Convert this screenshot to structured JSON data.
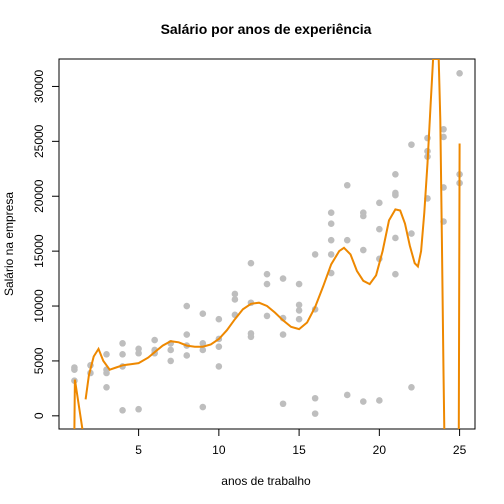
{
  "chart_data": {
    "type": "scatter",
    "title": "Salário por anos de experiência",
    "xlabel": "anos de trabalho",
    "ylabel": "Salário na empresa",
    "xlim": [
      0.04,
      25.96
    ],
    "ylim": [
      -1200,
      32500
    ],
    "x_ticks": [
      5,
      10,
      15,
      20,
      25
    ],
    "y_ticks": [
      0,
      5000,
      10000,
      15000,
      20000,
      25000,
      30000
    ],
    "grid": false,
    "legend": "none",
    "colors": {
      "points": "#bebebe",
      "curve": "#ee8800",
      "axes": "#000000"
    },
    "points": [
      {
        "x": 1,
        "y": 4200
      },
      {
        "x": 1,
        "y": 4400
      },
      {
        "x": 1,
        "y": 3200
      },
      {
        "x": 2,
        "y": 4600
      },
      {
        "x": 2,
        "y": 3900
      },
      {
        "x": 3,
        "y": 5600
      },
      {
        "x": 3,
        "y": 4200
      },
      {
        "x": 3,
        "y": 3900
      },
      {
        "x": 3,
        "y": 2600
      },
      {
        "x": 4,
        "y": 6600
      },
      {
        "x": 4,
        "y": 5600
      },
      {
        "x": 4,
        "y": 4500
      },
      {
        "x": 4,
        "y": 500
      },
      {
        "x": 5,
        "y": 6100
      },
      {
        "x": 5,
        "y": 5700
      },
      {
        "x": 5,
        "y": 600
      },
      {
        "x": 6,
        "y": 6900
      },
      {
        "x": 6,
        "y": 6000
      },
      {
        "x": 6,
        "y": 5700
      },
      {
        "x": 7,
        "y": 6600
      },
      {
        "x": 7,
        "y": 6000
      },
      {
        "x": 7,
        "y": 5000
      },
      {
        "x": 8,
        "y": 10000
      },
      {
        "x": 8,
        "y": 7400
      },
      {
        "x": 8,
        "y": 6400
      },
      {
        "x": 8,
        "y": 5500
      },
      {
        "x": 9,
        "y": 9300
      },
      {
        "x": 9,
        "y": 6600
      },
      {
        "x": 9,
        "y": 6000
      },
      {
        "x": 9,
        "y": 800
      },
      {
        "x": 10,
        "y": 8800
      },
      {
        "x": 10,
        "y": 7000
      },
      {
        "x": 10,
        "y": 6300
      },
      {
        "x": 10,
        "y": 4500
      },
      {
        "x": 11,
        "y": 11100
      },
      {
        "x": 11,
        "y": 10600
      },
      {
        "x": 11,
        "y": 9200
      },
      {
        "x": 12,
        "y": 13900
      },
      {
        "x": 12,
        "y": 10300
      },
      {
        "x": 12,
        "y": 7500
      },
      {
        "x": 12,
        "y": 7200
      },
      {
        "x": 13,
        "y": 12900
      },
      {
        "x": 13,
        "y": 12000
      },
      {
        "x": 13,
        "y": 9100
      },
      {
        "x": 14,
        "y": 12500
      },
      {
        "x": 14,
        "y": 8900
      },
      {
        "x": 14,
        "y": 7400
      },
      {
        "x": 14,
        "y": 1100
      },
      {
        "x": 15,
        "y": 12000
      },
      {
        "x": 15,
        "y": 10100
      },
      {
        "x": 15,
        "y": 9600
      },
      {
        "x": 15,
        "y": 8800
      },
      {
        "x": 16,
        "y": 14700
      },
      {
        "x": 16,
        "y": 9700
      },
      {
        "x": 16,
        "y": 1600
      },
      {
        "x": 16,
        "y": 200
      },
      {
        "x": 17,
        "y": 18500
      },
      {
        "x": 17,
        "y": 17500
      },
      {
        "x": 17,
        "y": 16000
      },
      {
        "x": 17,
        "y": 14700
      },
      {
        "x": 17,
        "y": 13000
      },
      {
        "x": 18,
        "y": 21000
      },
      {
        "x": 18,
        "y": 16000
      },
      {
        "x": 18,
        "y": 1900
      },
      {
        "x": 19,
        "y": 18500
      },
      {
        "x": 19,
        "y": 18200
      },
      {
        "x": 19,
        "y": 15100
      },
      {
        "x": 19,
        "y": 1300
      },
      {
        "x": 20,
        "y": 19400
      },
      {
        "x": 20,
        "y": 17000
      },
      {
        "x": 20,
        "y": 14300
      },
      {
        "x": 20,
        "y": 1400
      },
      {
        "x": 21,
        "y": 22000
      },
      {
        "x": 21,
        "y": 20300
      },
      {
        "x": 21,
        "y": 20100
      },
      {
        "x": 21,
        "y": 16200
      },
      {
        "x": 21,
        "y": 12900
      },
      {
        "x": 22,
        "y": 24700
      },
      {
        "x": 22,
        "y": 16600
      },
      {
        "x": 22,
        "y": 2600
      },
      {
        "x": 23,
        "y": 25300
      },
      {
        "x": 23,
        "y": 24100
      },
      {
        "x": 23,
        "y": 23600
      },
      {
        "x": 23,
        "y": 19800
      },
      {
        "x": 24,
        "y": 26100
      },
      {
        "x": 24,
        "y": 25400
      },
      {
        "x": 24,
        "y": 20800
      },
      {
        "x": 24,
        "y": 17700
      },
      {
        "x": 25,
        "y": 31200
      },
      {
        "x": 25,
        "y": 22000
      },
      {
        "x": 25,
        "y": 21200
      }
    ],
    "curve": [
      {
        "x": 1.0,
        "y": -1200
      },
      {
        "x": 1.03,
        "y": 3300
      },
      {
        "x": 1.5,
        "y": -1200
      },
      {
        "x": 1.7,
        "y": 1500
      },
      {
        "x": 1.9,
        "y": 3700
      },
      {
        "x": 2.2,
        "y": 5400
      },
      {
        "x": 2.5,
        "y": 6100
      },
      {
        "x": 2.8,
        "y": 5000
      },
      {
        "x": 3.2,
        "y": 4200
      },
      {
        "x": 3.6,
        "y": 4400
      },
      {
        "x": 4.0,
        "y": 4600
      },
      {
        "x": 4.5,
        "y": 4700
      },
      {
        "x": 5.0,
        "y": 4800
      },
      {
        "x": 5.6,
        "y": 5300
      },
      {
        "x": 6.0,
        "y": 5800
      },
      {
        "x": 6.5,
        "y": 6400
      },
      {
        "x": 7.0,
        "y": 6800
      },
      {
        "x": 7.5,
        "y": 6700
      },
      {
        "x": 8.0,
        "y": 6400
      },
      {
        "x": 8.5,
        "y": 6300
      },
      {
        "x": 9.0,
        "y": 6300
      },
      {
        "x": 9.5,
        "y": 6500
      },
      {
        "x": 10.0,
        "y": 7000
      },
      {
        "x": 10.5,
        "y": 7800
      },
      {
        "x": 11.0,
        "y": 8800
      },
      {
        "x": 11.5,
        "y": 9700
      },
      {
        "x": 12.0,
        "y": 10200
      },
      {
        "x": 12.5,
        "y": 10300
      },
      {
        "x": 13.0,
        "y": 10000
      },
      {
        "x": 13.5,
        "y": 9400
      },
      {
        "x": 14.0,
        "y": 8700
      },
      {
        "x": 14.5,
        "y": 8100
      },
      {
        "x": 15.0,
        "y": 7900
      },
      {
        "x": 15.5,
        "y": 8500
      },
      {
        "x": 16.0,
        "y": 9900
      },
      {
        "x": 16.5,
        "y": 11800
      },
      {
        "x": 17.0,
        "y": 13800
      },
      {
        "x": 17.5,
        "y": 15000
      },
      {
        "x": 17.8,
        "y": 15300
      },
      {
        "x": 18.2,
        "y": 14700
      },
      {
        "x": 18.6,
        "y": 13200
      },
      {
        "x": 19.0,
        "y": 12300
      },
      {
        "x": 19.4,
        "y": 12000
      },
      {
        "x": 19.8,
        "y": 12800
      },
      {
        "x": 20.2,
        "y": 15000
      },
      {
        "x": 20.6,
        "y": 17800
      },
      {
        "x": 21.0,
        "y": 18800
      },
      {
        "x": 21.3,
        "y": 18700
      },
      {
        "x": 21.6,
        "y": 17500
      },
      {
        "x": 21.9,
        "y": 15500
      },
      {
        "x": 22.2,
        "y": 13900
      },
      {
        "x": 22.4,
        "y": 13600
      },
      {
        "x": 22.6,
        "y": 15000
      },
      {
        "x": 22.8,
        "y": 18500
      },
      {
        "x": 23.0,
        "y": 23000
      },
      {
        "x": 23.2,
        "y": 28500
      },
      {
        "x": 23.35,
        "y": 32500
      },
      {
        "x": 23.7,
        "y": 32500
      },
      {
        "x": 23.8,
        "y": 27000
      },
      {
        "x": 23.9,
        "y": 16000
      },
      {
        "x": 24.0,
        "y": 4000
      },
      {
        "x": 24.05,
        "y": -1200
      },
      {
        "x": 24.95,
        "y": -1200
      },
      {
        "x": 25.0,
        "y": 24800
      }
    ]
  }
}
